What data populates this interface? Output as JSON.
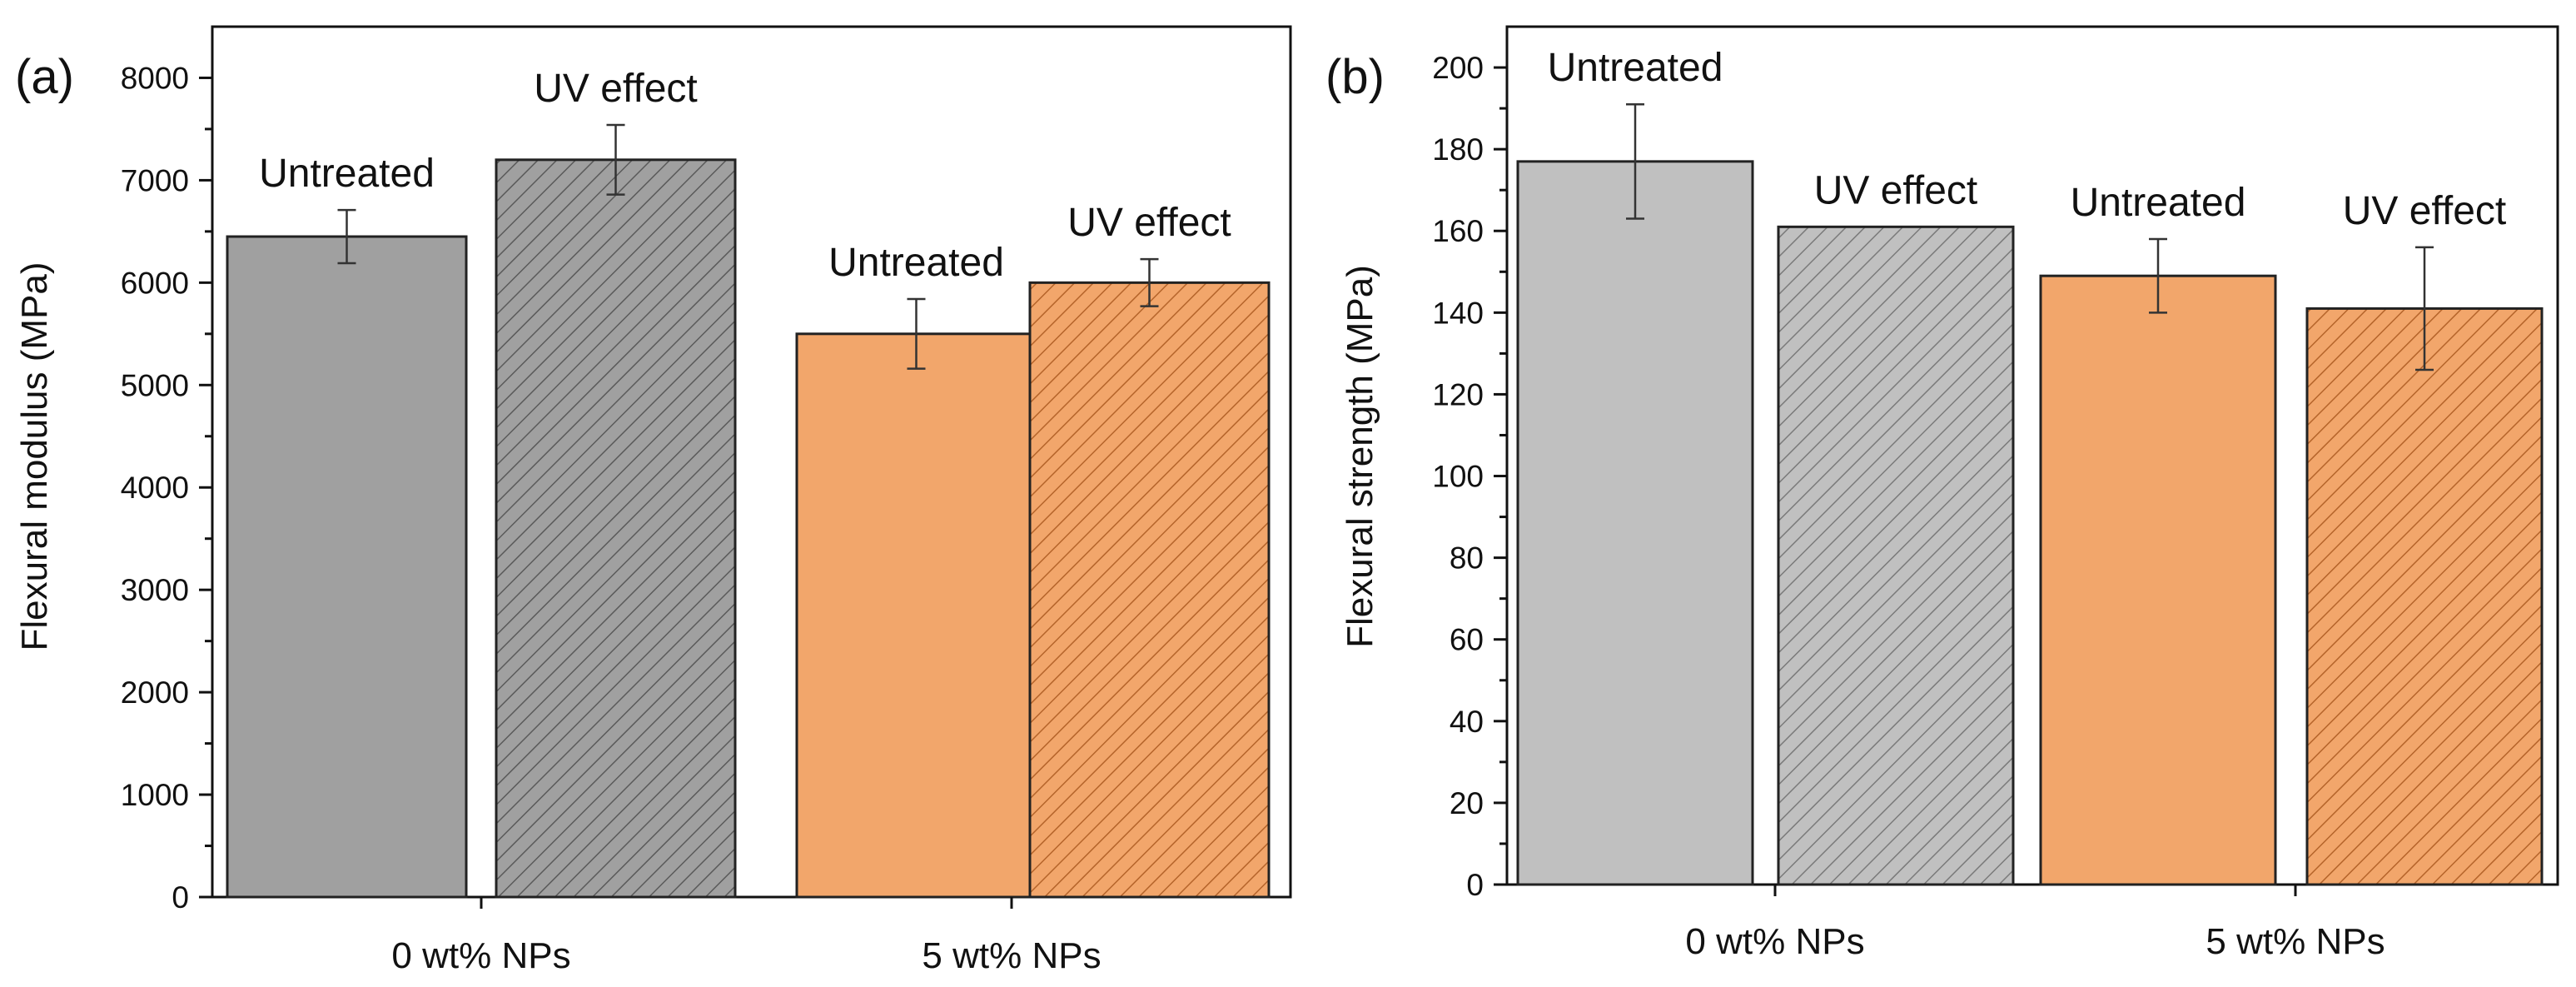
{
  "colors": {
    "gray_dark": "#a0a0a0",
    "gray_light": "#c0c0c0",
    "orange": "#f2a66b",
    "hatch_on_gray_dark": "#5a5a5a",
    "hatch_on_gray_light": "#7a7a7a",
    "hatch_on_orange": "#b5642a"
  },
  "chart_data": [
    {
      "type": "bar",
      "panel_label": "(a)",
      "ylabel": "Flexural modulus (MPa)",
      "xlabel": "",
      "ylim": [
        0,
        8500
      ],
      "yticks": [
        0,
        1000,
        2000,
        3000,
        4000,
        5000,
        6000,
        7000,
        8000
      ],
      "categories": [
        "0 wt% NPs",
        "5 wt% NPs"
      ],
      "grid": false,
      "bars": [
        {
          "group": "0 wt% NPs",
          "label": "Untreated",
          "value": 6450,
          "error": 260,
          "color": "gray_dark",
          "hatched": false
        },
        {
          "group": "0 wt% NPs",
          "label": "UV effect",
          "value": 7200,
          "error": 340,
          "color": "gray_dark",
          "hatched": true
        },
        {
          "group": "5 wt% NPs",
          "label": "Untreated",
          "value": 5500,
          "error": 340,
          "color": "orange",
          "hatched": false
        },
        {
          "group": "5 wt% NPs",
          "label": "UV effect",
          "value": 6000,
          "error": 230,
          "color": "orange",
          "hatched": true
        }
      ]
    },
    {
      "type": "bar",
      "panel_label": "(b)",
      "ylabel": "Flexural strength (MPa)",
      "xlabel": "",
      "ylim": [
        0,
        210
      ],
      "yticks": [
        0,
        20,
        40,
        60,
        80,
        100,
        120,
        140,
        160,
        180,
        200
      ],
      "categories": [
        "0 wt% NPs",
        "5 wt% NPs"
      ],
      "grid": false,
      "bars": [
        {
          "group": "0 wt% NPs",
          "label": "Untreated",
          "value": 177,
          "error": 14,
          "color": "gray_light",
          "hatched": false
        },
        {
          "group": "0 wt% NPs",
          "label": "UV effect",
          "value": 161,
          "error": 0,
          "color": "gray_light",
          "hatched": true
        },
        {
          "group": "5 wt% NPs",
          "label": "Untreated",
          "value": 149,
          "error": 9,
          "color": "orange",
          "hatched": false
        },
        {
          "group": "5 wt% NPs",
          "label": "UV effect",
          "value": 141,
          "error": 15,
          "color": "orange",
          "hatched": true
        }
      ]
    }
  ]
}
